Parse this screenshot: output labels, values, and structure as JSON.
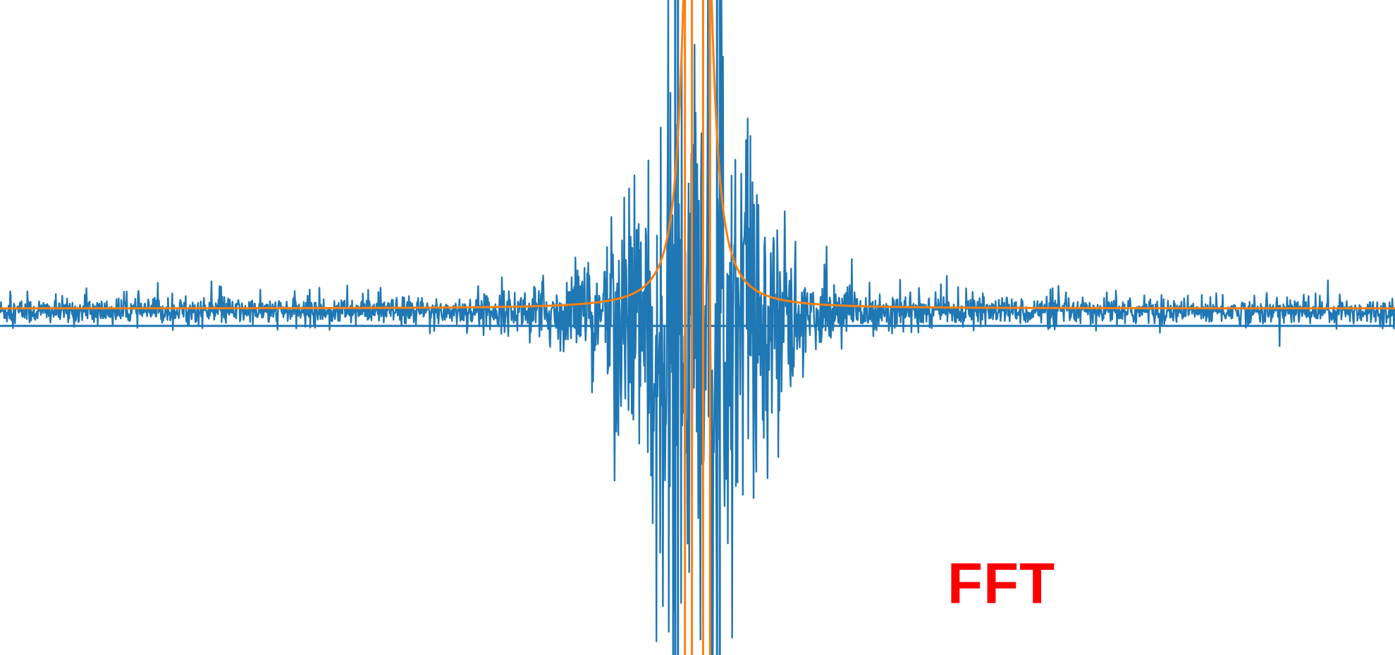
{
  "chart_data": {
    "type": "line",
    "title": "",
    "xlabel": "",
    "ylabel": "",
    "grid": false,
    "legend": "none",
    "xlim": [
      -1,
      1
    ],
    "ylim": [
      -1.0,
      1.0
    ],
    "annotation": "FFT",
    "annotation_color": "#ff0000",
    "series": [
      {
        "color": "#1f77b4",
        "description_type": "noisy-spectrum",
        "baseline": -0.02,
        "noise_amplitude": 0.035,
        "peak_centers": [
          -0.035,
          0.035
        ],
        "peak_width": 0.18,
        "peak_amplitude": 0.75,
        "vertical_lines": [
          -0.032,
          -0.028,
          0.028,
          0.032
        ]
      },
      {
        "color": "#ff7f0e",
        "description_type": "lorentzian-fit",
        "baseline": 0.0,
        "peak_centers": [
          -0.01,
          0.01
        ],
        "peak_width": 0.012,
        "peak_amplitude": 4.0,
        "vertical_lines": [
          -0.018,
          -0.008,
          0.008,
          0.018
        ]
      }
    ]
  }
}
